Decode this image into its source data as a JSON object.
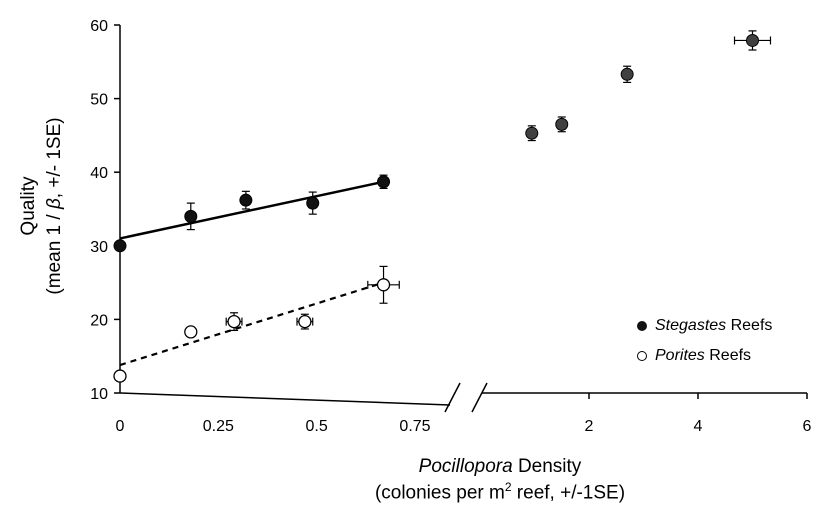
{
  "chart_data": {
    "type": "scatter",
    "title": "",
    "xlabel": {
      "italic": "Pocillopora",
      "rest": " Density"
    },
    "xlabel_line2": {
      "pre": "(colonies per m",
      "sup": "2",
      "post": " reef, +/-1SE)"
    },
    "ylabel_line1": "Quality",
    "ylabel_line2": {
      "pre": "(mean 1 / ",
      "beta": "β",
      "post": ", +/- 1SE)"
    },
    "ylim": [
      10,
      60
    ],
    "yticks": [
      "10",
      "20",
      "30",
      "40",
      "50",
      "60"
    ],
    "x_segments": [
      {
        "range": [
          0,
          0.75
        ],
        "ticks": [
          "0",
          "0.25",
          "0.5",
          "0.75"
        ],
        "tick_values": [
          0,
          0.25,
          0.5,
          0.75
        ]
      },
      {
        "range": [
          0.75,
          6
        ],
        "ticks": [
          "2",
          "4",
          "6"
        ],
        "tick_values": [
          2,
          4,
          6
        ],
        "note": "axis break"
      }
    ],
    "series": [
      {
        "name": "Stegastes Reefs",
        "name_italic": "Stegastes",
        "name_rest": " Reefs",
        "marker": "filled",
        "color": "#111111",
        "color_right": "#404040",
        "points": [
          {
            "x": 0.0,
            "y": 30.0,
            "yerr": 0.5,
            "xerr": 0
          },
          {
            "x": 0.18,
            "y": 34.0,
            "yerr": 1.8,
            "xerr": 0
          },
          {
            "x": 0.32,
            "y": 36.2,
            "yerr": 1.2,
            "xerr": 0
          },
          {
            "x": 0.49,
            "y": 35.8,
            "yerr": 1.5,
            "xerr": 0
          },
          {
            "x": 0.67,
            "y": 38.7,
            "yerr": 0.9,
            "xerr": 0
          },
          {
            "x": 0.95,
            "y": 45.3,
            "yerr": 1.0,
            "xerr": 0
          },
          {
            "x": 1.5,
            "y": 46.5,
            "yerr": 1.0,
            "xerr": 0
          },
          {
            "x": 2.7,
            "y": 53.3,
            "yerr": 1.1,
            "xerr": 0
          },
          {
            "x": 5.0,
            "y": 57.9,
            "yerr": 1.3,
            "xerr": 0.33
          }
        ],
        "trendline": {
          "x": [
            0,
            0.67
          ],
          "y": [
            31.0,
            38.7
          ],
          "style": "solid"
        }
      },
      {
        "name": "Porites Reefs",
        "name_italic": "Porites",
        "name_rest": " Reefs",
        "marker": "open",
        "color": "#000000",
        "points": [
          {
            "x": 0.0,
            "y": 12.3,
            "yerr": 0,
            "xerr": 0
          },
          {
            "x": 0.18,
            "y": 18.3,
            "yerr": 0,
            "xerr": 0
          },
          {
            "x": 0.29,
            "y": 19.7,
            "yerr": 1.2,
            "xerr": 0.02
          },
          {
            "x": 0.47,
            "y": 19.7,
            "yerr": 1.0,
            "xerr": 0.02
          },
          {
            "x": 0.67,
            "y": 24.7,
            "yerr": 2.5,
            "xerr": 0.04
          }
        ],
        "trendline": {
          "x": [
            0,
            0.67
          ],
          "y": [
            13.8,
            25.0
          ],
          "style": "dashed"
        }
      }
    ],
    "legend_position": "bottom-right",
    "grid": false
  }
}
